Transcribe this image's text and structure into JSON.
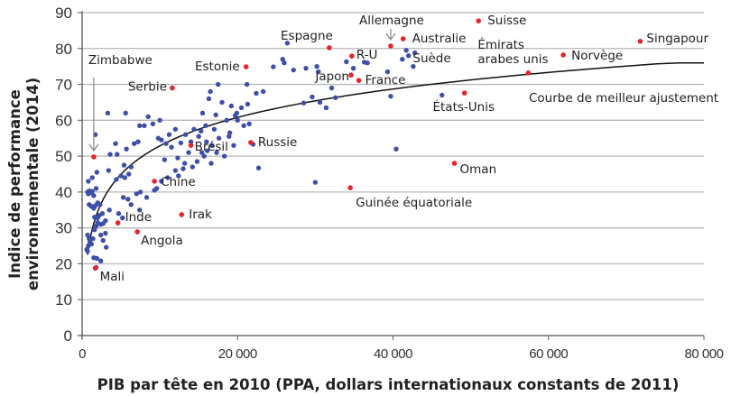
{
  "chart_data": {
    "type": "scatter",
    "title": "",
    "xlabel": "PIB par tête en 2010 (PPA, dollars internationaux constants de 2011)",
    "ylabel_lines": [
      "Indice de performance",
      "environnementale (2014)"
    ],
    "ylabel": "Indice de performance environnementale (2014)",
    "xlim": [
      0,
      80000
    ],
    "ylim": [
      0,
      90
    ],
    "x_ticks": [
      0,
      20000,
      40000,
      60000,
      80000
    ],
    "x_tick_labels": [
      "0",
      "20 000",
      "40 000",
      "60 000",
      "80 000"
    ],
    "y_ticks": [
      0,
      10,
      20,
      30,
      40,
      50,
      60,
      70,
      80,
      90
    ],
    "y_tick_labels": [
      "0",
      "10",
      "20",
      "30",
      "40",
      "50",
      "60",
      "70",
      "80",
      "90"
    ],
    "grid": "horizontal",
    "colors": {
      "highlight": "#e8242b",
      "other": "#3f4fa8",
      "curve": "#111111",
      "grid": "#b8b8b8",
      "axis": "#555555"
    },
    "fit_curve": {
      "label": "Courbe de meilleur ajustement",
      "type": "logarithmic",
      "points": [
        [
          700,
          22.5
        ],
        [
          1500,
          33
        ],
        [
          3000,
          41
        ],
        [
          5000,
          46
        ],
        [
          8000,
          51
        ],
        [
          12000,
          55.5
        ],
        [
          16000,
          59
        ],
        [
          20000,
          61.7
        ],
        [
          30000,
          66.3
        ],
        [
          40000,
          69.6
        ],
        [
          50000,
          72
        ],
        [
          60000,
          74
        ],
        [
          70000,
          75.3
        ],
        [
          80000,
          76
        ]
      ]
    },
    "labeled_countries": [
      {
        "name": "Zimbabwe",
        "x": 1500,
        "y": 49.8,
        "arrow": true
      },
      {
        "name": "Mali",
        "x": 1700,
        "y": 18.8
      },
      {
        "name": "Serbie",
        "x": 11600,
        "y": 69
      },
      {
        "name": "Chine",
        "x": 9300,
        "y": 43
      },
      {
        "name": "Inde",
        "x": 4600,
        "y": 31.4
      },
      {
        "name": "Angola",
        "x": 7100,
        "y": 28.9
      },
      {
        "name": "Irak",
        "x": 12800,
        "y": 33.7
      },
      {
        "name": "Brésil",
        "x": 14000,
        "y": 53
      },
      {
        "name": "Russie",
        "x": 21700,
        "y": 53.8
      },
      {
        "name": "Estonie",
        "x": 21100,
        "y": 74.9
      },
      {
        "name": "Espagne",
        "x": 31800,
        "y": 80.2
      },
      {
        "name": "R-U",
        "x": 34700,
        "y": 77.9
      },
      {
        "name": "Japon",
        "x": 34600,
        "y": 72.6
      },
      {
        "name": "France",
        "x": 35600,
        "y": 71.1
      },
      {
        "name": "Allemagne",
        "x": 39700,
        "y": 80.7,
        "arrow": true
      },
      {
        "name": "Australie",
        "x": 41300,
        "y": 82.7
      },
      {
        "name": "Suède",
        "x": 40800,
        "y": 77.9
      },
      {
        "name": "Suisse",
        "x": 51000,
        "y": 87.7
      },
      {
        "name": "Émirats arabes unis",
        "x": 57400,
        "y": 73.2
      },
      {
        "name": "Norvège",
        "x": 61900,
        "y": 78.2
      },
      {
        "name": "Singapour",
        "x": 71800,
        "y": 82
      },
      {
        "name": "États-Unis",
        "x": 49200,
        "y": 67.6
      },
      {
        "name": "Oman",
        "x": 47900,
        "y": 48
      },
      {
        "name": "Guinée équatoriale",
        "x": 34500,
        "y": 41.2
      }
    ],
    "other_countries": [
      [
        700,
        40
      ],
      [
        800,
        39.5
      ],
      [
        900,
        40.3
      ],
      [
        1100,
        39.8
      ],
      [
        1300,
        40.2
      ],
      [
        1500,
        39
      ],
      [
        1800,
        41
      ],
      [
        900,
        36.5
      ],
      [
        1200,
        36
      ],
      [
        1500,
        35.5
      ],
      [
        1700,
        36.2
      ],
      [
        2000,
        37
      ],
      [
        2300,
        36.5
      ],
      [
        700,
        28
      ],
      [
        900,
        27
      ],
      [
        1000,
        26
      ],
      [
        1200,
        25.5
      ],
      [
        800,
        25
      ],
      [
        600,
        24
      ],
      [
        700,
        23.5
      ],
      [
        1400,
        27
      ],
      [
        1600,
        29.5
      ],
      [
        1800,
        30.5
      ],
      [
        2000,
        31.5
      ],
      [
        2400,
        31
      ],
      [
        2700,
        31.2
      ],
      [
        3000,
        32
      ],
      [
        1500,
        21.7
      ],
      [
        1900,
        21.5
      ],
      [
        2400,
        20.8
      ],
      [
        1800,
        19
      ],
      [
        3100,
        24.6
      ],
      [
        2700,
        26.5
      ],
      [
        1600,
        33
      ],
      [
        2200,
        33.5
      ],
      [
        2600,
        34
      ],
      [
        2000,
        32.8
      ],
      [
        2400,
        28
      ],
      [
        3000,
        28.5
      ],
      [
        800,
        43
      ],
      [
        1300,
        44
      ],
      [
        1900,
        45.5
      ],
      [
        3400,
        46
      ],
      [
        4400,
        43.5
      ],
      [
        5000,
        44.5
      ],
      [
        5500,
        44
      ],
      [
        6000,
        45
      ],
      [
        5400,
        47.5
      ],
      [
        6300,
        47
      ],
      [
        3600,
        50.5
      ],
      [
        4500,
        50.5
      ],
      [
        5700,
        52
      ],
      [
        6700,
        53.5
      ],
      [
        7200,
        54
      ],
      [
        4300,
        53.5
      ],
      [
        1700,
        56
      ],
      [
        3300,
        62
      ],
      [
        5600,
        62
      ],
      [
        7400,
        58.5
      ],
      [
        8000,
        58.5
      ],
      [
        8500,
        61
      ],
      [
        9100,
        59
      ],
      [
        10000,
        60
      ],
      [
        9800,
        55
      ],
      [
        10200,
        54.5
      ],
      [
        11200,
        56
      ],
      [
        12000,
        57.5
      ],
      [
        3500,
        35
      ],
      [
        4700,
        34
      ],
      [
        5300,
        38.5
      ],
      [
        5900,
        38
      ],
      [
        6300,
        36.5
      ],
      [
        7000,
        39.5
      ],
      [
        7500,
        40
      ],
      [
        8300,
        38.5
      ],
      [
        9300,
        40.5
      ],
      [
        9600,
        41
      ],
      [
        10200,
        43
      ],
      [
        11000,
        44
      ],
      [
        12000,
        46
      ],
      [
        12400,
        44.5
      ],
      [
        13000,
        46.5
      ],
      [
        5200,
        32.8
      ],
      [
        7400,
        35
      ],
      [
        10600,
        49
      ],
      [
        12300,
        49.5
      ],
      [
        13200,
        48
      ],
      [
        14200,
        47
      ],
      [
        14800,
        48.5
      ],
      [
        15700,
        50
      ],
      [
        16600,
        48
      ],
      [
        17300,
        51
      ],
      [
        18300,
        50
      ],
      [
        19500,
        53
      ],
      [
        19000,
        56.5
      ],
      [
        13300,
        56
      ],
      [
        14400,
        57.5
      ],
      [
        15300,
        57
      ],
      [
        15900,
        58.5
      ],
      [
        16700,
        53
      ],
      [
        17600,
        55
      ],
      [
        18900,
        55.5
      ],
      [
        20000,
        60
      ],
      [
        20800,
        58.5
      ],
      [
        21500,
        59
      ],
      [
        22000,
        53.3
      ],
      [
        22700,
        46.7
      ],
      [
        17200,
        61.5
      ],
      [
        18000,
        65
      ],
      [
        19200,
        64
      ],
      [
        19900,
        62
      ],
      [
        20500,
        63.5
      ],
      [
        21300,
        64.5
      ],
      [
        22400,
        67.5
      ],
      [
        23300,
        68
      ],
      [
        21200,
        70
      ],
      [
        17500,
        70
      ],
      [
        15500,
        62
      ],
      [
        16300,
        66
      ],
      [
        16500,
        68
      ],
      [
        14000,
        54
      ],
      [
        15000,
        55.5
      ],
      [
        16000,
        54
      ],
      [
        17000,
        57.5
      ],
      [
        18600,
        60
      ],
      [
        19700,
        61.3
      ],
      [
        15400,
        51
      ],
      [
        16100,
        51.5
      ],
      [
        13700,
        51
      ],
      [
        12700,
        53.7
      ],
      [
        11500,
        52.5
      ],
      [
        10800,
        53.5
      ],
      [
        25800,
        77
      ],
      [
        26400,
        81.5
      ],
      [
        24600,
        74.9
      ],
      [
        26000,
        76
      ],
      [
        27200,
        74
      ],
      [
        28800,
        74.5
      ],
      [
        30400,
        73.5
      ],
      [
        30200,
        75
      ],
      [
        29600,
        66.5
      ],
      [
        30600,
        65
      ],
      [
        31400,
        63.5
      ],
      [
        32100,
        69
      ],
      [
        34000,
        76.3
      ],
      [
        34900,
        74.5
      ],
      [
        39700,
        66.7
      ],
      [
        40400,
        52
      ],
      [
        46300,
        67
      ],
      [
        36300,
        76.2
      ],
      [
        36700,
        76
      ],
      [
        41700,
        79.5
      ],
      [
        42000,
        78
      ],
      [
        42800,
        78.8
      ],
      [
        41200,
        77
      ],
      [
        42600,
        75
      ],
      [
        39300,
        73.5
      ],
      [
        30000,
        42.7
      ],
      [
        32600,
        66.3
      ],
      [
        28500,
        64.8
      ]
    ]
  }
}
